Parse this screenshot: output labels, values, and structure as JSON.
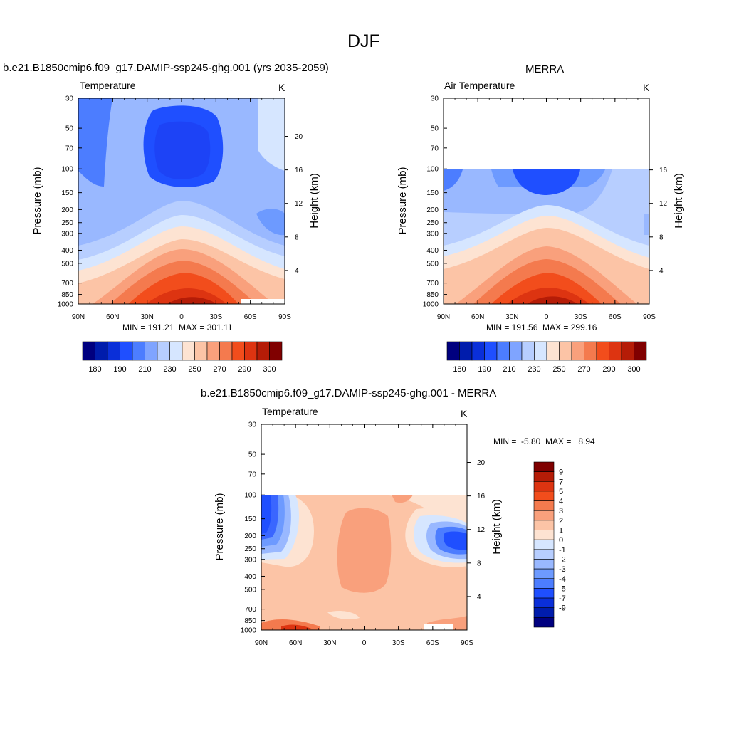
{
  "figure_title": "DJF",
  "chart_data": [
    {
      "type": "heatmap",
      "panel_title": "b.e21.B1850cmip6.f09_g17.DAMIP-ssp245-ghg.001 (yrs 2035-2059)",
      "left_label": "Temperature",
      "right_label": "K",
      "ylabel": "Pressure (mb)",
      "ylabel_right": "Height (km)",
      "xtick_labels": [
        "90N",
        "60N",
        "30N",
        "0",
        "30S",
        "60S",
        "90S"
      ],
      "ytick_labels": [
        "30",
        "50",
        "70",
        "100",
        "150",
        "200",
        "250",
        "300",
        "400",
        "500",
        "700",
        "850",
        "1000"
      ],
      "height_tick_labels": [
        "20",
        "16",
        "12",
        "8",
        "4"
      ],
      "stats": "MIN = 191.21  MAX = 301.11",
      "colorbar_labels": [
        "180",
        "190",
        "210",
        "230",
        "250",
        "270",
        "290",
        "300"
      ]
    },
    {
      "type": "heatmap",
      "panel_title": "MERRA",
      "left_label": "Air Temperature",
      "right_label": "K",
      "ylabel": "Pressure (mb)",
      "ylabel_right": "Height (km)",
      "xtick_labels": [
        "90N",
        "60N",
        "30N",
        "0",
        "30S",
        "60S",
        "90S"
      ],
      "ytick_labels": [
        "30",
        "50",
        "70",
        "100",
        "150",
        "200",
        "250",
        "300",
        "400",
        "500",
        "700",
        "850",
        "1000"
      ],
      "height_tick_labels": [
        "16",
        "12",
        "8",
        "4"
      ],
      "stats": "MIN = 191.56  MAX = 299.16",
      "colorbar_labels": [
        "180",
        "190",
        "210",
        "230",
        "250",
        "270",
        "290",
        "300"
      ]
    },
    {
      "type": "heatmap",
      "panel_title": "b.e21.B1850cmip6.f09_g17.DAMIP-ssp245-ghg.001 - MERRA",
      "left_label": "Temperature",
      "right_label": "K",
      "ylabel": "Pressure (mb)",
      "ylabel_right": "Height (km)",
      "xtick_labels": [
        "90N",
        "60N",
        "30N",
        "0",
        "30S",
        "60S",
        "90S"
      ],
      "ytick_labels": [
        "30",
        "50",
        "70",
        "100",
        "150",
        "200",
        "250",
        "300",
        "400",
        "500",
        "700",
        "850",
        "1000"
      ],
      "height_tick_labels": [
        "20",
        "16",
        "12",
        "8",
        "4"
      ],
      "stats": "MIN =  -5.80  MAX =   8.94",
      "colorbar_labels": [
        "9",
        "7",
        "5",
        "4",
        "3",
        "2",
        "1",
        "0",
        "-1",
        "-2",
        "-3",
        "-4",
        "-5",
        "-7",
        "-9"
      ]
    }
  ]
}
